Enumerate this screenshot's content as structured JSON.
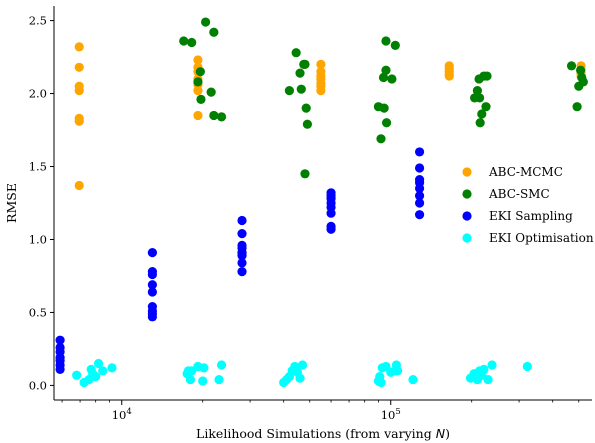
{
  "chart_data": {
    "type": "scatter",
    "xlabel": "Likelihood Simulations (from varying N)",
    "ylabel": "RMSE",
    "xscale": "log",
    "xlim": [
      5600,
      560000
    ],
    "ylim": [
      -0.1,
      2.6
    ],
    "x_major_ticks": [
      {
        "value": 10000,
        "label": "10^4"
      },
      {
        "value": 100000,
        "label": "10^5"
      }
    ],
    "y_ticks": [
      0.0,
      0.5,
      1.0,
      1.5,
      2.0,
      2.5
    ],
    "y_tick_labels": [
      "0.0",
      "0.5",
      "1.0",
      "1.5",
      "2.0",
      "2.5"
    ],
    "grid": false,
    "legend_position": "right",
    "series": [
      {
        "name": "ABC-MCMC",
        "color": "#ffa500",
        "points": [
          [
            6950,
            2.32
          ],
          [
            6950,
            2.18
          ],
          [
            6950,
            2.05
          ],
          [
            6950,
            2.02
          ],
          [
            6950,
            1.83
          ],
          [
            6950,
            1.81
          ],
          [
            6950,
            1.37
          ],
          [
            19200,
            2.23
          ],
          [
            19200,
            2.18
          ],
          [
            19200,
            2.15
          ],
          [
            19200,
            2.1
          ],
          [
            19200,
            2.06
          ],
          [
            19200,
            2.02
          ],
          [
            19200,
            1.85
          ],
          [
            55000,
            2.2
          ],
          [
            55000,
            2.15
          ],
          [
            55000,
            2.12
          ],
          [
            55000,
            2.1
          ],
          [
            55000,
            2.07
          ],
          [
            55000,
            2.05
          ],
          [
            55000,
            2.02
          ],
          [
            165000,
            2.19
          ],
          [
            165000,
            2.17
          ],
          [
            165000,
            2.15
          ],
          [
            165000,
            2.13
          ],
          [
            165000,
            2.12
          ],
          [
            510000,
            2.19
          ],
          [
            510000,
            2.16
          ],
          [
            510000,
            2.14
          ],
          [
            510000,
            2.12
          ]
        ]
      },
      {
        "name": "ABC-SMC",
        "color": "#008000",
        "points": [
          [
            17000,
            2.36
          ],
          [
            18200,
            2.35
          ],
          [
            20500,
            2.49
          ],
          [
            22000,
            2.42
          ],
          [
            19600,
            2.15
          ],
          [
            19200,
            2.08
          ],
          [
            19700,
            1.96
          ],
          [
            21500,
            2.01
          ],
          [
            22000,
            1.85
          ],
          [
            23500,
            1.84
          ],
          [
            42000,
            2.02
          ],
          [
            44500,
            2.28
          ],
          [
            46000,
            2.14
          ],
          [
            46500,
            2.03
          ],
          [
            47500,
            2.2
          ],
          [
            48500,
            1.9
          ],
          [
            49000,
            1.79
          ],
          [
            48000,
            1.45
          ],
          [
            48000,
            2.2
          ],
          [
            90000,
            1.91
          ],
          [
            92000,
            1.69
          ],
          [
            94000,
            2.11
          ],
          [
            96000,
            2.16
          ],
          [
            96000,
            2.36
          ],
          [
            96500,
            1.8
          ],
          [
            94500,
            1.9
          ],
          [
            101000,
            2.1
          ],
          [
            104000,
            2.33
          ],
          [
            205000,
            1.97
          ],
          [
            210000,
            2.02
          ],
          [
            213000,
            2.1
          ],
          [
            215000,
            1.8
          ],
          [
            218000,
            1.86
          ],
          [
            222000,
            2.12
          ],
          [
            226000,
            1.91
          ],
          [
            228000,
            2.12
          ],
          [
            214000,
            1.97
          ],
          [
            470000,
            2.19
          ],
          [
            493000,
            1.91
          ],
          [
            500000,
            2.05
          ],
          [
            508000,
            2.16
          ],
          [
            513000,
            2.11
          ],
          [
            520000,
            2.08
          ]
        ]
      },
      {
        "name": "EKI Sampling",
        "color": "#0000ff",
        "points": [
          [
            5900,
            0.31
          ],
          [
            5900,
            0.26
          ],
          [
            5900,
            0.23
          ],
          [
            5900,
            0.19
          ],
          [
            5900,
            0.17
          ],
          [
            5900,
            0.14
          ],
          [
            5900,
            0.11
          ],
          [
            13000,
            0.91
          ],
          [
            13000,
            0.78
          ],
          [
            13000,
            0.76
          ],
          [
            13000,
            0.69
          ],
          [
            13000,
            0.64
          ],
          [
            13000,
            0.54
          ],
          [
            13000,
            0.51
          ],
          [
            13000,
            0.49
          ],
          [
            13000,
            0.47
          ],
          [
            28000,
            1.13
          ],
          [
            28000,
            1.04
          ],
          [
            28000,
            0.96
          ],
          [
            28000,
            0.94
          ],
          [
            28000,
            0.91
          ],
          [
            28000,
            0.89
          ],
          [
            28000,
            0.84
          ],
          [
            28000,
            0.78
          ],
          [
            60000,
            1.32
          ],
          [
            60000,
            1.3
          ],
          [
            60000,
            1.28
          ],
          [
            60000,
            1.25
          ],
          [
            60000,
            1.22
          ],
          [
            60000,
            1.18
          ],
          [
            60000,
            1.09
          ],
          [
            60000,
            1.07
          ],
          [
            128000,
            1.6
          ],
          [
            128000,
            1.49
          ],
          [
            128000,
            1.41
          ],
          [
            128000,
            1.39
          ],
          [
            128000,
            1.35
          ],
          [
            128000,
            1.3
          ],
          [
            128000,
            1.25
          ],
          [
            128000,
            1.17
          ]
        ]
      },
      {
        "name": "EKI Optimisation",
        "color": "#00ffff",
        "points": [
          [
            6800,
            0.07
          ],
          [
            7250,
            0.02
          ],
          [
            7550,
            0.04
          ],
          [
            7700,
            0.11
          ],
          [
            7800,
            0.08
          ],
          [
            8000,
            0.06
          ],
          [
            8200,
            0.15
          ],
          [
            8500,
            0.1
          ],
          [
            9200,
            0.12
          ],
          [
            17500,
            0.08
          ],
          [
            17700,
            0.1
          ],
          [
            18000,
            0.04
          ],
          [
            18200,
            0.1
          ],
          [
            19200,
            0.13
          ],
          [
            20000,
            0.03
          ],
          [
            20200,
            0.12
          ],
          [
            23000,
            0.04
          ],
          [
            23500,
            0.14
          ],
          [
            40000,
            0.02
          ],
          [
            41000,
            0.04
          ],
          [
            42000,
            0.06
          ],
          [
            43000,
            0.1
          ],
          [
            44000,
            0.13
          ],
          [
            45000,
            0.09
          ],
          [
            46000,
            0.05
          ],
          [
            47000,
            0.14
          ],
          [
            90000,
            0.03
          ],
          [
            91000,
            0.06
          ],
          [
            92000,
            0.02
          ],
          [
            93000,
            0.12
          ],
          [
            96000,
            0.13
          ],
          [
            100000,
            0.09
          ],
          [
            104000,
            0.1
          ],
          [
            105000,
            0.14
          ],
          [
            106000,
            0.1
          ],
          [
            121000,
            0.04
          ],
          [
            198000,
            0.05
          ],
          [
            204000,
            0.08
          ],
          [
            210000,
            0.04
          ],
          [
            214000,
            0.1
          ],
          [
            218000,
            0.07
          ],
          [
            222000,
            0.11
          ],
          [
            230000,
            0.04
          ],
          [
            238000,
            0.14
          ],
          [
            322000,
            0.13
          ]
        ]
      }
    ]
  }
}
